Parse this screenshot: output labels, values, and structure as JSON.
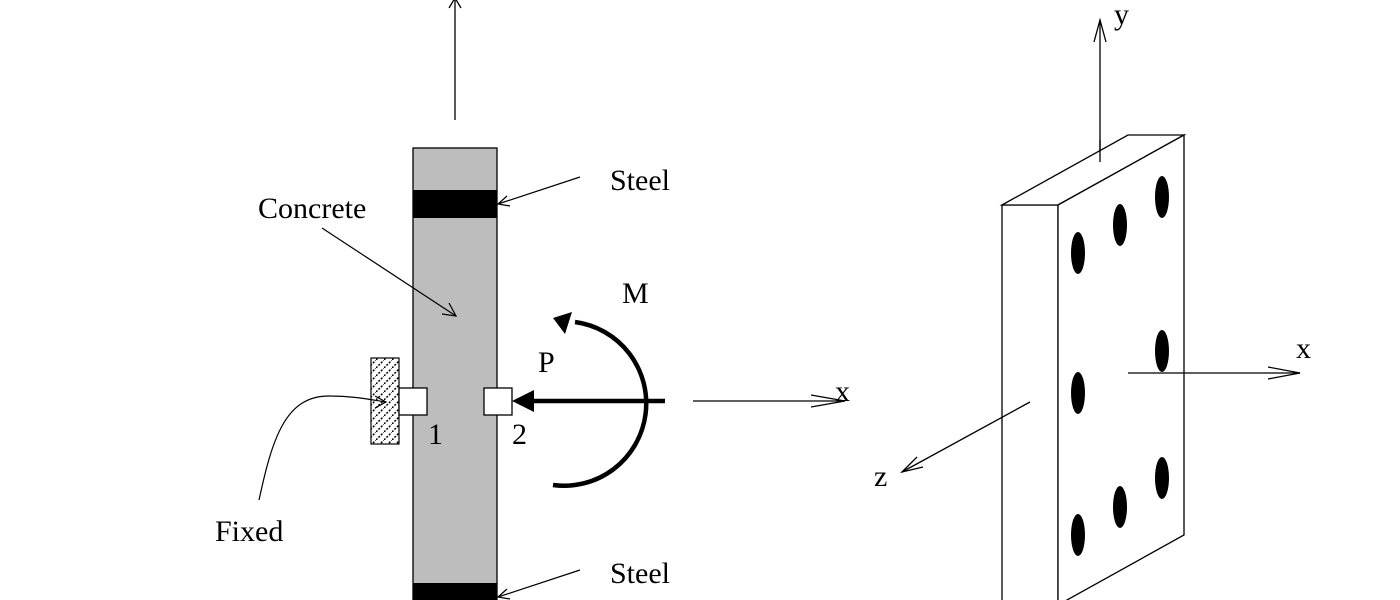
{
  "labels": {
    "concrete": "Concrete",
    "steel_top": "Steel",
    "steel_bottom": "Steel",
    "fixed": "Fixed",
    "moment": "M",
    "force": "P",
    "node_1": "1",
    "node_2": "2",
    "axis_x_left": "x",
    "axis_x_right": "x",
    "axis_y": "y",
    "axis_z": "z"
  },
  "colors": {
    "concrete": "#bdbdbd",
    "steel": "#000000",
    "line": "#000000",
    "background": "#ffffff"
  }
}
